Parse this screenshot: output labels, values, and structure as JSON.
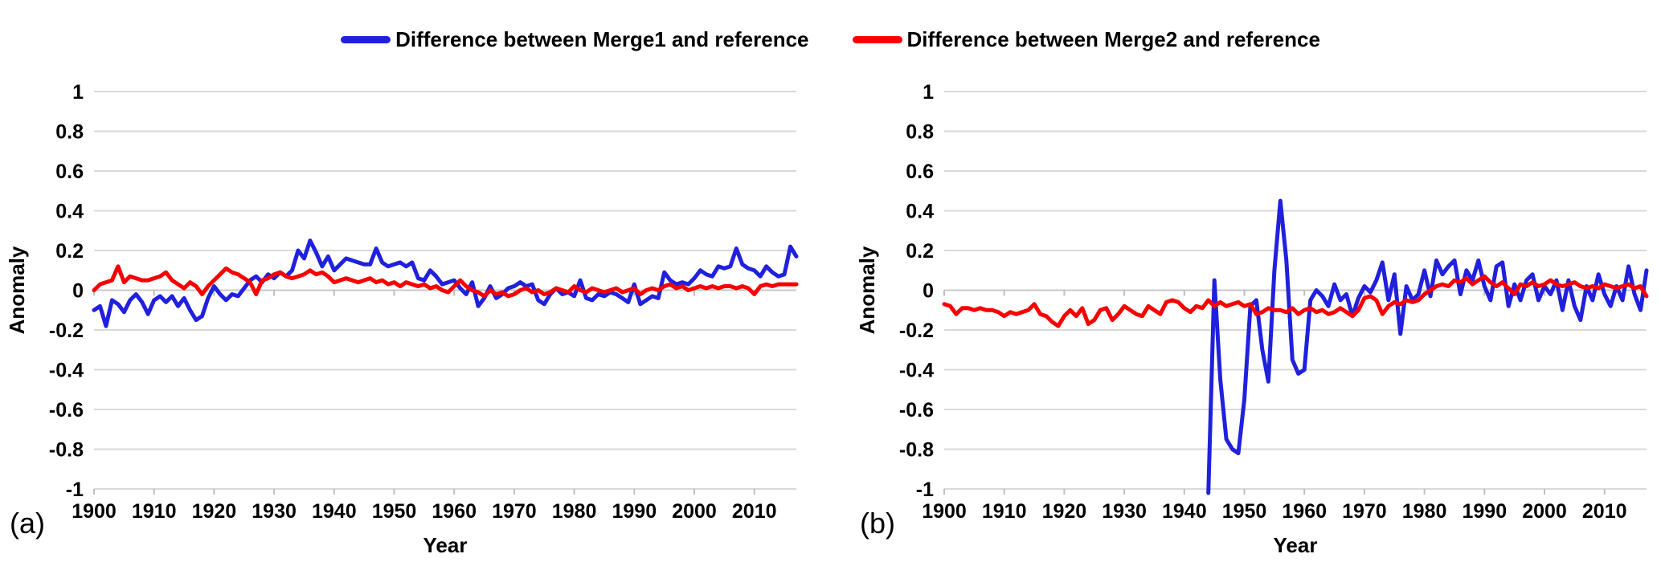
{
  "figure": {
    "background": "#ffffff",
    "grid_color": "#d9d9d9",
    "zero_line_color": "#c9c9c9",
    "tick_color": "#bfbfbf",
    "text_color": "#000000",
    "legend": {
      "items": [
        {
          "label": "Difference between Merge1 and reference",
          "color": "#2020dd"
        },
        {
          "label": "Difference between Merge2 and reference",
          "color": "#f80000"
        }
      ]
    }
  },
  "chart_data": [
    {
      "type": "line",
      "panel_label": "(a)",
      "title": "",
      "xlabel": "Year",
      "ylabel": "Anomaly",
      "xlim": [
        1900,
        2017
      ],
      "ylim": [
        -1,
        1
      ],
      "grid": true,
      "legend_position": "top-center",
      "yticks": [
        1,
        0.8,
        0.6,
        0.4,
        0.2,
        0,
        -0.2,
        -0.4,
        -0.6,
        -0.8,
        -1
      ],
      "xticks": [
        1900,
        1910,
        1920,
        1930,
        1940,
        1950,
        1960,
        1970,
        1980,
        1990,
        2000,
        2010
      ],
      "series": [
        {
          "name": "Difference between Merge1 and reference",
          "color": "#2020dd",
          "x_start": 1900,
          "values": [
            -0.1,
            -0.08,
            -0.18,
            -0.05,
            -0.07,
            -0.11,
            -0.05,
            -0.02,
            -0.06,
            -0.12,
            -0.05,
            -0.03,
            -0.06,
            -0.03,
            -0.08,
            -0.04,
            -0.1,
            -0.15,
            -0.13,
            -0.04,
            0.02,
            -0.02,
            -0.05,
            -0.02,
            -0.03,
            0.01,
            0.05,
            0.07,
            0.04,
            0.08,
            0.06,
            0.09,
            0.07,
            0.1,
            0.2,
            0.16,
            0.25,
            0.19,
            0.12,
            0.17,
            0.1,
            0.13,
            0.16,
            0.15,
            0.14,
            0.13,
            0.13,
            0.21,
            0.14,
            0.12,
            0.13,
            0.14,
            0.12,
            0.14,
            0.06,
            0.05,
            0.1,
            0.07,
            0.03,
            0.04,
            0.05,
            0.01,
            -0.02,
            0.04,
            -0.08,
            -0.04,
            0.02,
            -0.04,
            -0.02,
            0.01,
            0.02,
            0.04,
            0.02,
            0.03,
            -0.05,
            -0.07,
            -0.02,
            0.01,
            -0.02,
            -0.01,
            -0.03,
            0.05,
            -0.04,
            -0.05,
            -0.02,
            -0.03,
            -0.01,
            -0.02,
            -0.04,
            -0.06,
            0.03,
            -0.07,
            -0.05,
            -0.03,
            -0.04,
            0.09,
            0.05,
            0.03,
            0.04,
            0.03,
            0.06,
            0.1,
            0.08,
            0.07,
            0.12,
            0.11,
            0.12,
            0.21,
            0.13,
            0.11,
            0.1,
            0.07,
            0.12,
            0.09,
            0.07,
            0.08,
            0.22,
            0.17
          ]
        },
        {
          "name": "Difference between Merge2 and reference",
          "color": "#f80000",
          "x_start": 1900,
          "values": [
            0.0,
            0.03,
            0.04,
            0.05,
            0.12,
            0.04,
            0.07,
            0.06,
            0.05,
            0.05,
            0.06,
            0.07,
            0.09,
            0.05,
            0.03,
            0.01,
            0.04,
            0.02,
            -0.02,
            0.02,
            0.05,
            0.08,
            0.11,
            0.09,
            0.08,
            0.06,
            0.04,
            -0.02,
            0.05,
            0.06,
            0.08,
            0.09,
            0.07,
            0.06,
            0.07,
            0.08,
            0.1,
            0.08,
            0.09,
            0.07,
            0.04,
            0.05,
            0.06,
            0.05,
            0.04,
            0.05,
            0.06,
            0.04,
            0.05,
            0.03,
            0.04,
            0.02,
            0.04,
            0.03,
            0.02,
            0.03,
            0.01,
            0.02,
            0.0,
            -0.01,
            0.02,
            0.05,
            0.02,
            0.0,
            -0.01,
            -0.03,
            0.0,
            -0.02,
            -0.01,
            -0.03,
            -0.02,
            0.0,
            0.01,
            -0.01,
            0.0,
            -0.02,
            -0.01,
            0.01,
            0.0,
            -0.01,
            0.02,
            0.0,
            -0.01,
            0.01,
            0.0,
            -0.01,
            0.0,
            0.01,
            -0.01,
            0.0,
            0.01,
            -0.02,
            0.0,
            0.01,
            0.0,
            0.02,
            0.03,
            0.01,
            0.02,
            0.0,
            0.01,
            0.02,
            0.01,
            0.02,
            0.01,
            0.02,
            0.02,
            0.01,
            0.02,
            0.01,
            -0.02,
            0.02,
            0.03,
            0.02,
            0.03,
            0.03,
            0.03,
            0.03
          ]
        }
      ]
    },
    {
      "type": "line",
      "panel_label": "(b)",
      "title": "",
      "xlabel": "Year",
      "ylabel": "Anomaly",
      "xlim": [
        1900,
        2017
      ],
      "ylim": [
        -1,
        1
      ],
      "grid": true,
      "legend_position": "top-center",
      "yticks": [
        1,
        0.8,
        0.6,
        0.4,
        0.2,
        0,
        -0.2,
        -0.4,
        -0.6,
        -0.8,
        -1
      ],
      "xticks": [
        1900,
        1910,
        1920,
        1930,
        1940,
        1950,
        1960,
        1970,
        1980,
        1990,
        2000,
        2010
      ],
      "series": [
        {
          "name": "Difference between Merge1 and reference",
          "color": "#2020dd",
          "x_start": 1944,
          "values": [
            -1.02,
            0.05,
            -0.45,
            -0.75,
            -0.8,
            -0.82,
            -0.55,
            -0.08,
            -0.05,
            -0.3,
            -0.46,
            0.1,
            0.45,
            0.15,
            -0.35,
            -0.42,
            -0.4,
            -0.05,
            0.0,
            -0.03,
            -0.08,
            0.03,
            -0.05,
            -0.02,
            -0.13,
            -0.04,
            0.02,
            -0.01,
            0.05,
            0.14,
            -0.05,
            0.08,
            -0.22,
            0.02,
            -0.05,
            -0.02,
            0.1,
            -0.03,
            0.15,
            0.08,
            0.12,
            0.15,
            -0.02,
            0.1,
            0.05,
            0.15,
            0.02,
            -0.05,
            0.12,
            0.14,
            -0.08,
            0.03,
            -0.05,
            0.05,
            0.08,
            -0.05,
            0.02,
            -0.02,
            0.05,
            -0.1,
            0.05,
            -0.08,
            -0.15,
            0.02,
            -0.05,
            0.08,
            -0.02,
            -0.08,
            0.02,
            -0.05,
            0.12,
            -0.02,
            -0.1,
            0.1
          ]
        },
        {
          "name": "Difference between Merge2 and reference",
          "color": "#f80000",
          "x_start": 1900,
          "values": [
            -0.07,
            -0.08,
            -0.12,
            -0.09,
            -0.09,
            -0.1,
            -0.09,
            -0.1,
            -0.1,
            -0.11,
            -0.13,
            -0.11,
            -0.12,
            -0.11,
            -0.1,
            -0.07,
            -0.12,
            -0.13,
            -0.16,
            -0.18,
            -0.13,
            -0.1,
            -0.13,
            -0.09,
            -0.17,
            -0.15,
            -0.1,
            -0.09,
            -0.15,
            -0.12,
            -0.08,
            -0.1,
            -0.12,
            -0.13,
            -0.08,
            -0.1,
            -0.12,
            -0.06,
            -0.05,
            -0.06,
            -0.09,
            -0.11,
            -0.08,
            -0.09,
            -0.05,
            -0.08,
            -0.06,
            -0.08,
            -0.07,
            -0.06,
            -0.08,
            -0.07,
            -0.12,
            -0.11,
            -0.09,
            -0.1,
            -0.1,
            -0.11,
            -0.09,
            -0.12,
            -0.1,
            -0.09,
            -0.11,
            -0.1,
            -0.12,
            -0.11,
            -0.09,
            -0.11,
            -0.13,
            -0.1,
            -0.04,
            -0.03,
            -0.05,
            -0.12,
            -0.08,
            -0.06,
            -0.07,
            -0.05,
            -0.06,
            -0.05,
            -0.02,
            0.0,
            0.02,
            0.03,
            0.02,
            0.05,
            0.04,
            0.06,
            0.03,
            0.05,
            0.07,
            0.04,
            0.02,
            0.04,
            0.01,
            -0.02,
            0.03,
            0.02,
            0.04,
            0.02,
            0.03,
            0.05,
            0.03,
            0.02,
            0.03,
            0.04,
            0.02,
            0.01,
            0.02,
            0.01,
            0.03,
            0.02,
            0.01,
            0.02,
            0.03,
            0.01,
            0.02,
            -0.03
          ]
        }
      ]
    }
  ]
}
